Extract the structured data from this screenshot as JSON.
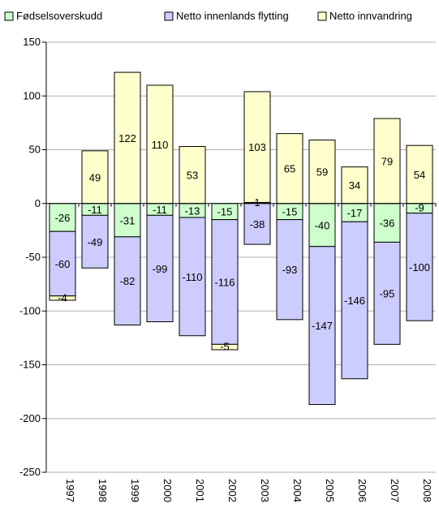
{
  "chart_data": {
    "type": "bar",
    "stacked": true,
    "categories": [
      "1997",
      "1998",
      "1999",
      "2000",
      "2001",
      "2002",
      "2003",
      "2004",
      "2005",
      "2006",
      "2007",
      "2008"
    ],
    "series": [
      {
        "name": "Fødselsoverskudd",
        "color": "#ccffcc",
        "values": [
          -26,
          -11,
          -31,
          -11,
          -13,
          -15,
          1,
          -15,
          -40,
          -17,
          -36,
          -9
        ]
      },
      {
        "name": "Netto innenlands flytting",
        "color": "#ccccff",
        "values": [
          -60,
          -49,
          -82,
          -99,
          -110,
          -116,
          -38,
          -93,
          -147,
          -146,
          -95,
          -100
        ]
      },
      {
        "name": "Netto innvandring",
        "color": "#ffffcc",
        "values": [
          -4,
          49,
          122,
          110,
          53,
          -5,
          103,
          65,
          59,
          34,
          79,
          54
        ]
      }
    ],
    "ylim": [
      -250,
      150
    ],
    "yticks": [
      -250,
      -200,
      -150,
      -100,
      -50,
      0,
      50,
      100,
      150
    ],
    "grid": true,
    "legend": "top"
  }
}
